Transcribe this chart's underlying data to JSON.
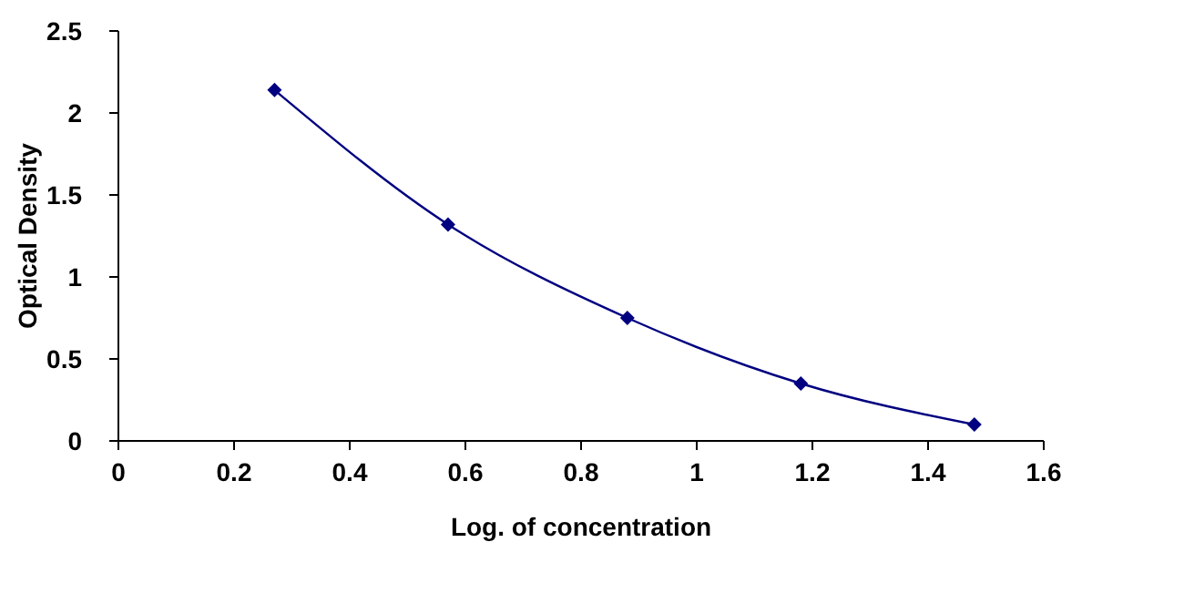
{
  "chart_data": {
    "type": "line",
    "xlabel": "Log. of concentration",
    "ylabel": "Optical Density",
    "x": [
      0.27,
      0.57,
      0.88,
      1.18,
      1.48
    ],
    "series": [
      {
        "color": "#000080",
        "values": [
          2.14,
          1.32,
          0.75,
          0.35,
          0.1
        ]
      }
    ],
    "xlim": [
      0,
      1.6
    ],
    "xticks": [
      0,
      0.2,
      0.4,
      0.6,
      0.8,
      1,
      1.2,
      1.4,
      1.6
    ],
    "ylim": [
      0,
      2.5
    ],
    "yticks": [
      0,
      0.5,
      1,
      1.5,
      2,
      2.5
    ],
    "marker": "diamond",
    "line_style": "solid"
  }
}
